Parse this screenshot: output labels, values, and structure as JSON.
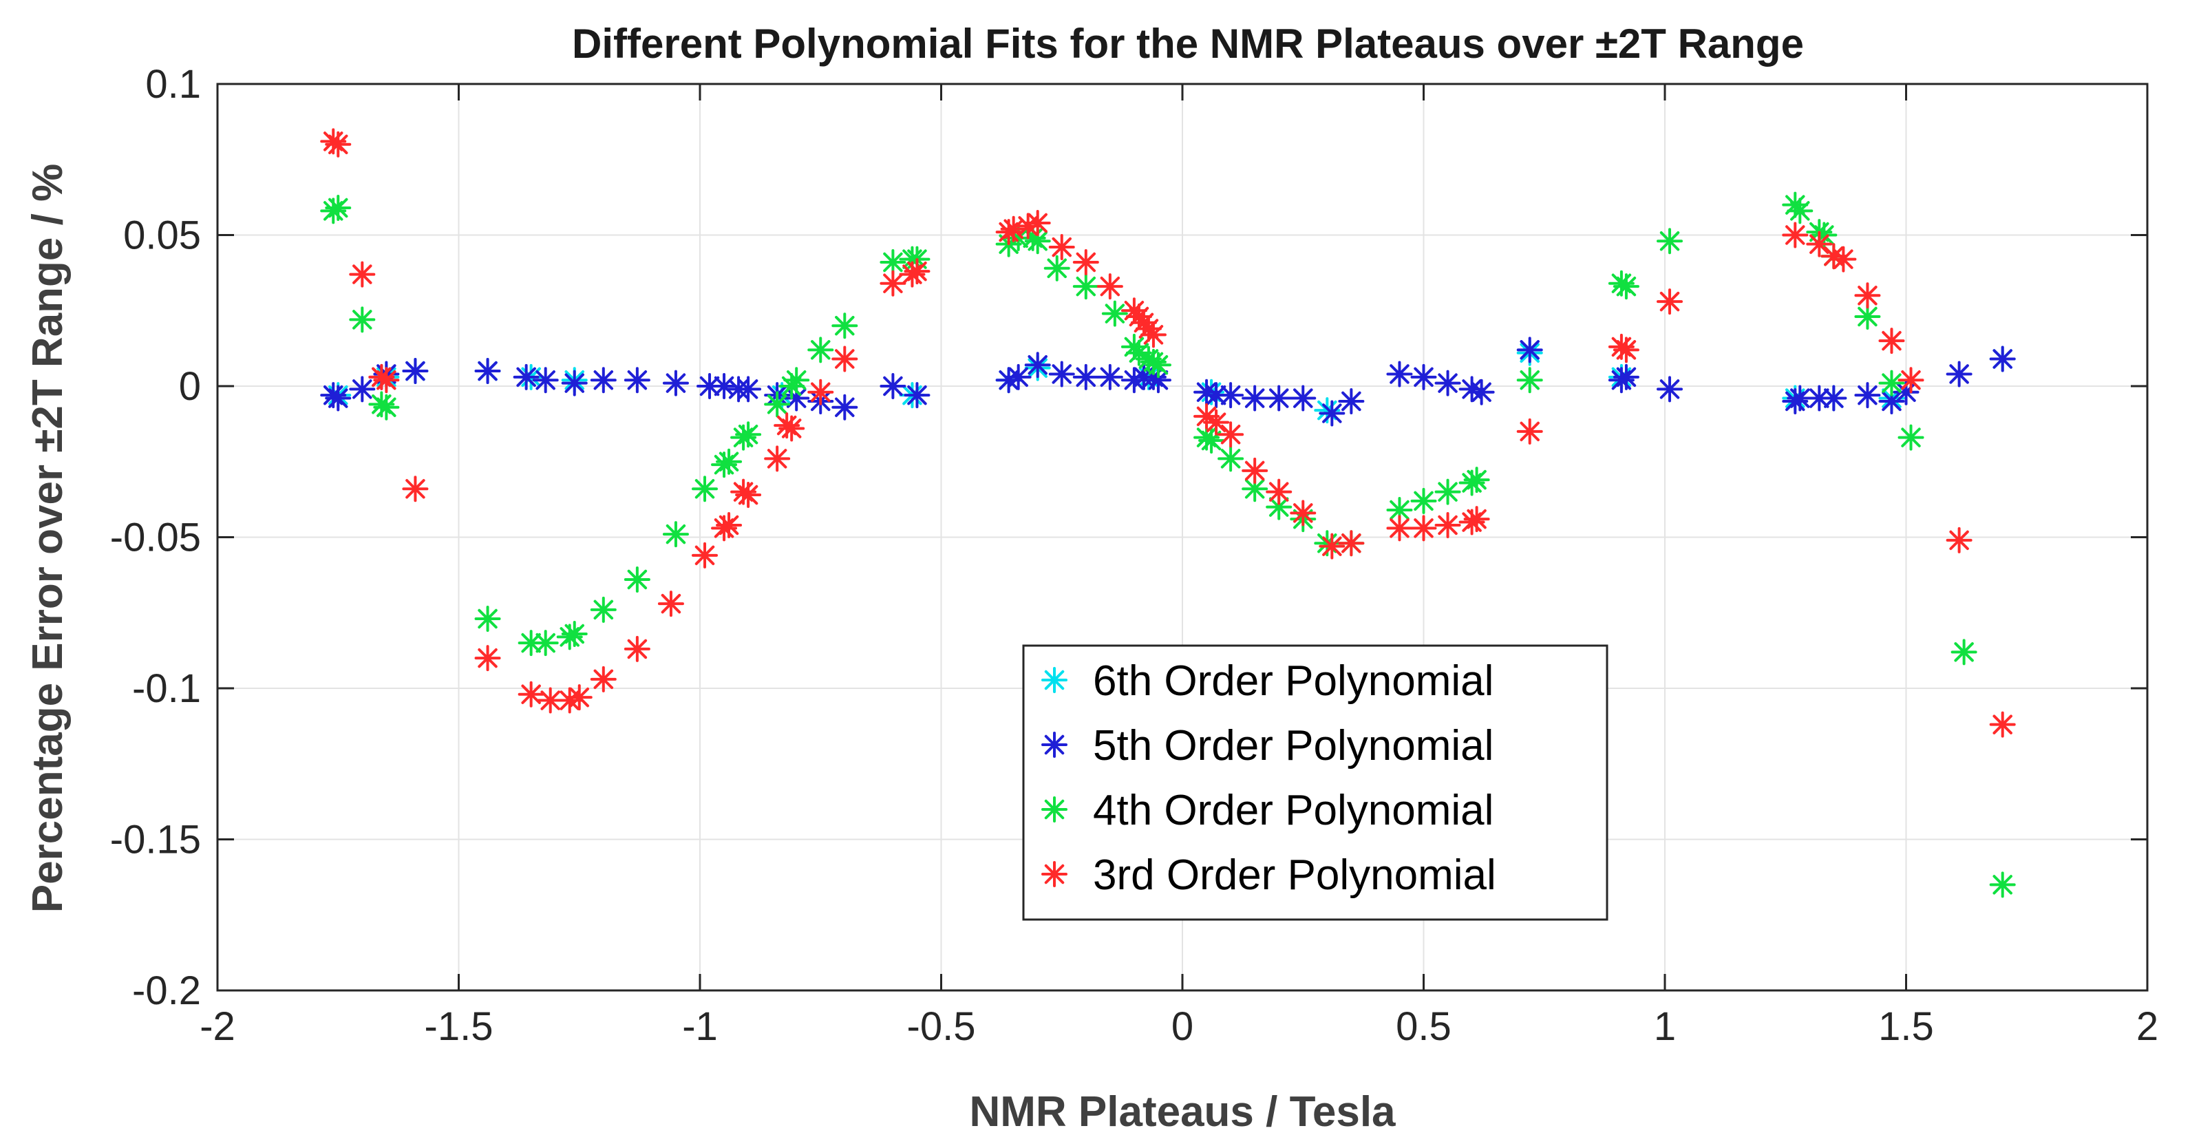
{
  "chart_data": {
    "type": "scatter",
    "title": "Different Polynomial Fits for the NMR Plateaus over ±2T Range",
    "xlabel": "NMR Plateaus / Tesla",
    "ylabel": "Percentage Error over ±2T Range / %",
    "xlim": [
      -2,
      2
    ],
    "ylim": [
      -0.2,
      0.1
    ],
    "xticks": [
      -2,
      -1.5,
      -1,
      -0.5,
      0,
      0.5,
      1,
      1.5,
      2
    ],
    "xtick_labels": [
      "-2",
      "-1.5",
      "-1",
      "-0.5",
      "0",
      "0.5",
      "1",
      "1.5",
      "2"
    ],
    "yticks": [
      -0.2,
      -0.15,
      -0.1,
      -0.05,
      0,
      0.05,
      0.1
    ],
    "ytick_labels": [
      "-0.2",
      "-0.15",
      "-0.1",
      "-0.05",
      "0",
      "0.05",
      "0.1"
    ],
    "grid": true,
    "marker": "asterisk",
    "legend_position": "bottom-center",
    "series": [
      {
        "name": "6th Order Polynomial",
        "color": "#00e0ee",
        "x": [
          -1.75,
          -1.65,
          -1.59,
          -1.44,
          -1.35,
          -1.26,
          -0.83,
          -0.56,
          -0.36,
          -0.3,
          -0.07,
          0.06,
          0.3,
          0.72,
          0.91,
          1.27,
          1.35,
          1.47,
          1.7
        ],
        "y": [
          -0.003,
          0.003,
          0.005,
          0.005,
          0.003,
          0.002,
          -0.003,
          -0.003,
          0.002,
          0.006,
          0.003,
          -0.002,
          -0.008,
          0.011,
          0.003,
          -0.004,
          -0.004,
          -0.004,
          0.009
        ]
      },
      {
        "name": "5th Order Polynomial",
        "color": "#1f1fd6",
        "x": [
          -1.76,
          -1.75,
          -1.7,
          -1.66,
          -1.65,
          -1.59,
          -1.44,
          -1.36,
          -1.32,
          -1.26,
          -1.2,
          -1.13,
          -1.05,
          -0.98,
          -0.95,
          -0.92,
          -0.9,
          -0.84,
          -0.8,
          -0.75,
          -0.7,
          -0.6,
          -0.55,
          -0.36,
          -0.34,
          -0.3,
          -0.25,
          -0.2,
          -0.15,
          -0.1,
          -0.08,
          -0.06,
          -0.05,
          0.05,
          0.07,
          0.1,
          0.15,
          0.2,
          0.25,
          0.31,
          0.35,
          0.45,
          0.5,
          0.55,
          0.6,
          0.62,
          0.72,
          0.91,
          0.92,
          1.01,
          1.27,
          1.28,
          1.32,
          1.35,
          1.42,
          1.47,
          1.5,
          1.61,
          1.7
        ],
        "y": [
          -0.003,
          -0.004,
          -0.001,
          0.003,
          0.004,
          0.005,
          0.005,
          0.003,
          0.002,
          0.001,
          0.002,
          0.002,
          0.001,
          0.0,
          0.0,
          -0.001,
          -0.001,
          -0.003,
          -0.004,
          -0.005,
          -0.007,
          0.0,
          -0.003,
          0.002,
          0.003,
          0.007,
          0.004,
          0.003,
          0.003,
          0.002,
          0.003,
          0.003,
          0.002,
          -0.002,
          -0.003,
          -0.003,
          -0.004,
          -0.004,
          -0.004,
          -0.009,
          -0.005,
          0.004,
          0.003,
          0.001,
          -0.001,
          -0.002,
          0.012,
          0.002,
          0.003,
          -0.001,
          -0.005,
          -0.004,
          -0.004,
          -0.004,
          -0.003,
          -0.005,
          -0.002,
          0.004,
          0.009
        ]
      },
      {
        "name": "4th Order Polynomial",
        "color": "#10e040",
        "x": [
          -1.76,
          -1.75,
          -1.7,
          -1.66,
          -1.65,
          -1.44,
          -1.35,
          -1.32,
          -1.27,
          -1.26,
          -1.2,
          -1.13,
          -1.05,
          -0.99,
          -0.95,
          -0.94,
          -0.91,
          -0.9,
          -0.84,
          -0.8,
          -0.81,
          -0.75,
          -0.7,
          -0.6,
          -0.56,
          -0.55,
          -0.36,
          -0.34,
          -0.31,
          -0.3,
          -0.26,
          -0.2,
          -0.14,
          -0.1,
          -0.09,
          -0.07,
          -0.06,
          -0.05,
          0.05,
          0.06,
          0.1,
          0.15,
          0.2,
          0.25,
          0.3,
          0.35,
          0.45,
          0.5,
          0.55,
          0.6,
          0.61,
          0.72,
          0.91,
          0.92,
          1.01,
          1.27,
          1.28,
          1.32,
          1.33,
          1.35,
          1.42,
          1.47,
          1.51,
          1.62,
          1.7
        ],
        "y": [
          0.058,
          0.059,
          0.022,
          -0.006,
          -0.007,
          -0.077,
          -0.085,
          -0.085,
          -0.083,
          -0.082,
          -0.074,
          -0.064,
          -0.049,
          -0.034,
          -0.026,
          -0.025,
          -0.017,
          -0.016,
          -0.006,
          0.002,
          0.0,
          0.012,
          0.02,
          0.041,
          0.042,
          0.042,
          0.047,
          0.049,
          0.049,
          0.048,
          0.039,
          0.033,
          0.024,
          0.013,
          0.011,
          0.009,
          0.008,
          0.007,
          -0.017,
          -0.018,
          -0.024,
          -0.034,
          -0.04,
          -0.044,
          -0.052,
          -0.052,
          -0.041,
          -0.038,
          -0.035,
          -0.032,
          -0.031,
          0.002,
          0.034,
          0.033,
          0.048,
          0.06,
          0.058,
          0.051,
          0.05,
          0.043,
          0.023,
          0.001,
          -0.017,
          -0.088,
          -0.165
        ]
      },
      {
        "name": "3rd Order Polynomial",
        "color": "#ff2a2a",
        "x": [
          -1.76,
          -1.75,
          -1.7,
          -1.66,
          -1.65,
          -1.59,
          -1.44,
          -1.35,
          -1.31,
          -1.27,
          -1.25,
          -1.2,
          -1.13,
          -1.06,
          -0.99,
          -0.95,
          -0.94,
          -0.9,
          -0.91,
          -0.84,
          -0.81,
          -0.82,
          -0.75,
          -0.7,
          -0.6,
          -0.56,
          -0.55,
          -0.36,
          -0.35,
          -0.32,
          -0.3,
          -0.25,
          -0.2,
          -0.15,
          -0.1,
          -0.09,
          -0.08,
          -0.07,
          -0.06,
          0.05,
          0.07,
          0.1,
          0.15,
          0.2,
          0.25,
          0.31,
          0.35,
          0.45,
          0.5,
          0.55,
          0.6,
          0.61,
          0.72,
          0.91,
          0.92,
          1.01,
          1.27,
          1.32,
          1.35,
          1.37,
          1.42,
          1.47,
          1.51,
          1.61,
          1.7
        ],
        "y": [
          0.081,
          0.08,
          0.037,
          0.003,
          0.002,
          -0.034,
          -0.09,
          -0.102,
          -0.104,
          -0.104,
          -0.103,
          -0.097,
          -0.087,
          -0.072,
          -0.056,
          -0.047,
          -0.046,
          -0.036,
          -0.035,
          -0.024,
          -0.014,
          -0.013,
          -0.002,
          0.009,
          0.034,
          0.037,
          0.038,
          0.051,
          0.052,
          0.053,
          0.054,
          0.046,
          0.041,
          0.033,
          0.025,
          0.023,
          0.021,
          0.019,
          0.017,
          -0.01,
          -0.012,
          -0.016,
          -0.028,
          -0.035,
          -0.042,
          -0.053,
          -0.052,
          -0.047,
          -0.047,
          -0.046,
          -0.045,
          -0.044,
          -0.015,
          0.013,
          0.012,
          0.028,
          0.05,
          0.047,
          0.043,
          0.042,
          0.03,
          0.015,
          0.002,
          -0.051,
          -0.112
        ]
      }
    ]
  }
}
